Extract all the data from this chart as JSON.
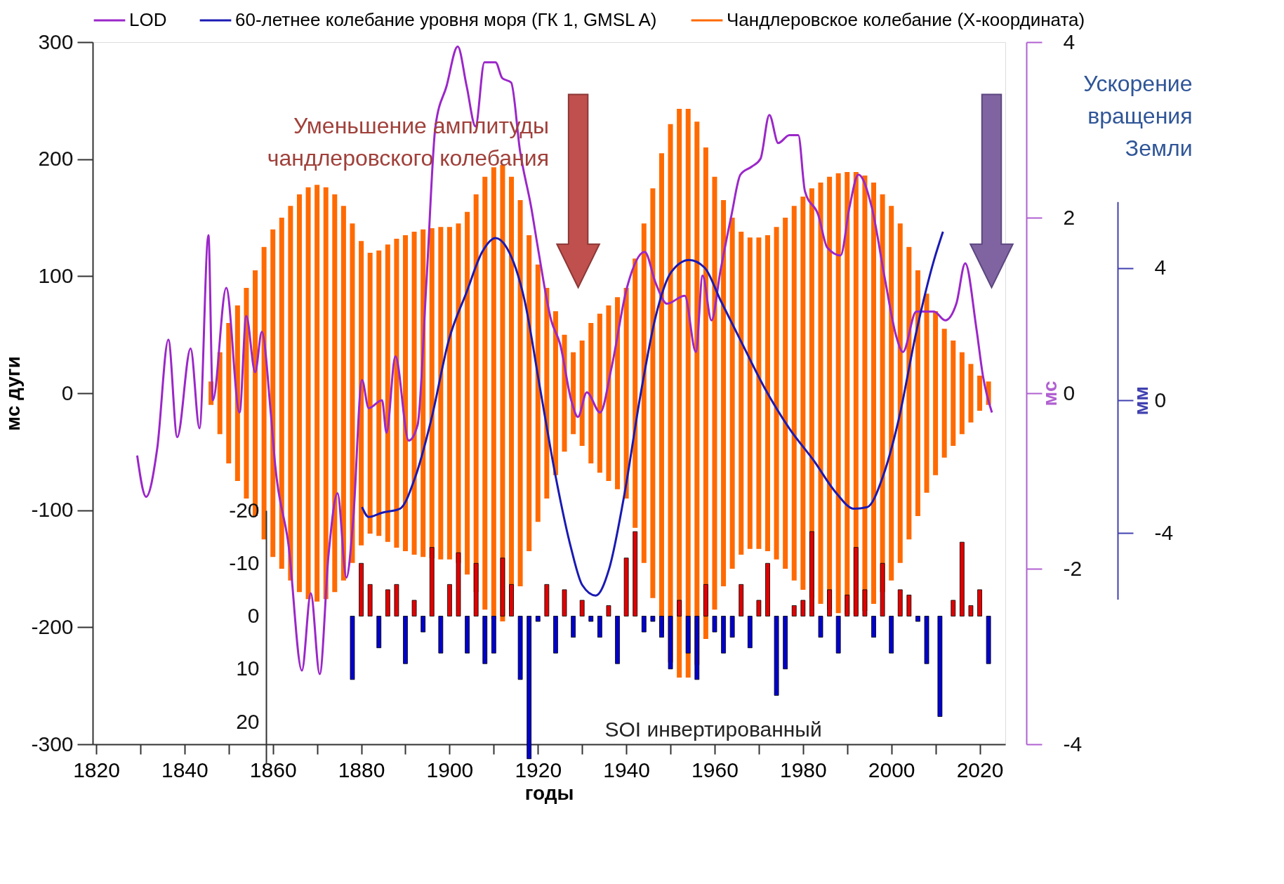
{
  "chart_data": [
    {
      "type": "line",
      "xlabel": "годы",
      "ylabel": "мс дуги",
      "y2label": "мс",
      "y3label": "мм",
      "xlim": [
        1820,
        2025
      ],
      "xticks": [
        1820,
        {
          "value": 1830,
          "label": null
        },
        1840,
        {
          "value": 1850,
          "label": null
        },
        1860,
        {
          "value": 1870,
          "label": null
        },
        1880,
        {
          "value": 1890,
          "label": null
        },
        1900,
        {
          "value": 1910,
          "label": null
        },
        1920,
        {
          "value": 1930,
          "label": null
        },
        1940,
        {
          "value": 1950,
          "label": null
        },
        1960,
        {
          "value": 1970,
          "label": null
        },
        1980,
        {
          "value": 1990,
          "label": null
        },
        2000,
        {
          "value": 2010,
          "label": null
        },
        2020
      ],
      "ylim": [
        -300,
        300
      ],
      "yticks": [
        -300,
        -200,
        -100,
        0,
        100,
        200,
        300
      ],
      "y2lim": [
        -4,
        4
      ],
      "y2ticks": [
        -4,
        -2,
        0,
        2,
        4
      ],
      "y3lim": [
        -6,
        6
      ],
      "y3ticks": [
        -4,
        0,
        4
      ],
      "grid": false,
      "legend": "top",
      "annotations": [
        "Уменьшение амплитуды чандлеровского колебания",
        "Ускорение вращения Земли"
      ],
      "series": [
        {
          "axis": "y2",
          "name": "LOD",
          "color": "#9b27c9",
          "x": [
            1830,
            1832,
            1834.5,
            1837,
            1839,
            1842,
            1844,
            1846,
            1847,
            1850,
            1853,
            1854.5,
            1856.5,
            1858,
            1860,
            1861,
            1864,
            1867,
            1869,
            1871,
            1873,
            1875,
            1877,
            1878.5,
            1880.5,
            1882,
            1885,
            1886,
            1888,
            1891,
            1893,
            1895,
            1897,
            1899.5,
            1902,
            1904,
            1906,
            1908,
            1910.5,
            1912,
            1914,
            1916,
            1918.5,
            1920,
            1923,
            1925,
            1927.5,
            1929,
            1931,
            1934,
            1936.5,
            1940,
            1944,
            1946.5,
            1949,
            1953,
            1955.5,
            1957,
            1959,
            1961,
            1963.5,
            1965.5,
            1968,
            1970,
            1972,
            1974,
            1976.5,
            1978.5,
            1980,
            1983,
            1985,
            1988,
            1990,
            1992,
            1995,
            1998,
            2000.5,
            2002,
            2005,
            2009,
            2011.5,
            2014,
            2016,
            2018.5,
            2020,
            2022
          ],
          "values": [
            -0.71,
            -1.18,
            -0.63,
            0.61,
            -0.5,
            0.51,
            -0.4,
            1.8,
            -0.08,
            1.2,
            -0.22,
            0.88,
            0.24,
            0.7,
            -0.22,
            -0.82,
            -1.73,
            -3.16,
            -2.28,
            -3.2,
            -1.83,
            -1.14,
            -2.1,
            -1.46,
            0.15,
            -0.17,
            -0.08,
            -0.45,
            0.42,
            -0.54,
            -0.36,
            1.29,
            3.04,
            3.5,
            3.95,
            3.5,
            3.04,
            3.77,
            3.77,
            3.59,
            3.54,
            2.76,
            2.12,
            1.66,
            0.83,
            0.56,
            -0.08,
            -0.27,
            0.01,
            -0.22,
            0.28,
            1.2,
            1.61,
            1.25,
            1.02,
            1.11,
            0.47,
            1.34,
            0.83,
            1.39,
            2.03,
            2.49,
            2.58,
            2.67,
            3.17,
            2.85,
            2.94,
            2.94,
            2.3,
            2.03,
            1.66,
            1.57,
            2.12,
            2.49,
            2.12,
            1.29,
            0.65,
            0.47,
            0.93,
            0.93,
            0.83,
            1.02,
            1.48,
            0.74,
            0.19,
            -0.22
          ]
        },
        {
          "axis": "y3",
          "name": "60-летнее колебание уровня моря (ГК 1, GMSL A)",
          "color": "#1a1ab4",
          "x": [
            1880.5,
            1882,
            1885,
            1889,
            1892.5,
            1896,
            1900,
            1904,
            1907.5,
            1910.5,
            1913,
            1917,
            1920.5,
            1924,
            1927.5,
            1930,
            1933,
            1936,
            1939.5,
            1943,
            1946.5,
            1950,
            1954,
            1957.5,
            1961,
            1965.5,
            1971,
            1976.5,
            1982,
            1987,
            1991,
            1994,
            1997.5,
            2001,
            2005,
            2009,
            2011
          ],
          "values": [
            -3.22,
            -3.52,
            -3.39,
            -3.27,
            -2.3,
            -0.61,
            1.82,
            3.27,
            4.48,
            4.9,
            4.61,
            3.03,
            0.36,
            -2.3,
            -4.48,
            -5.58,
            -5.89,
            -5.09,
            -2.79,
            0.12,
            2.55,
            3.88,
            4.24,
            4.0,
            3.03,
            1.82,
            0.36,
            -0.85,
            -1.82,
            -2.79,
            -3.27,
            -3.22,
            -2.3,
            -0.61,
            2.06,
            4.24,
            5.09
          ]
        },
        {
          "type": "bar",
          "axis": "y",
          "name": "Чандлеровское колебание (Х-координата)",
          "color": "#ff6a00",
          "x": [
            1846,
            1848,
            1850,
            1852,
            1854,
            1856,
            1858,
            1860,
            1862,
            1864,
            1866,
            1868,
            1870,
            1872,
            1874,
            1876,
            1878,
            1880,
            1882,
            1884,
            1886,
            1888,
            1890,
            1892,
            1894,
            1896,
            1898,
            1900,
            1902,
            1904,
            1906,
            1908,
            1910,
            1912,
            1914,
            1916,
            1918,
            1920,
            1922,
            1924,
            1926,
            1928,
            1930,
            1932,
            1934,
            1936,
            1938,
            1940,
            1942,
            1944,
            1946,
            1948,
            1950,
            1952,
            1954,
            1956,
            1958,
            1960,
            1962,
            1964,
            1966,
            1968,
            1970,
            1972,
            1974,
            1976,
            1978,
            1980,
            1982,
            1984,
            1986,
            1988,
            1990,
            1992,
            1994,
            1996,
            1998,
            2000,
            2002,
            2004,
            2006,
            2008,
            2010,
            2012,
            2014,
            2016,
            2018,
            2020,
            2022
          ],
          "base": [
            -10,
            -35,
            -60,
            -75,
            -90,
            -105,
            -125,
            -140,
            -150,
            -160,
            -170,
            -176,
            -178,
            -176,
            -170,
            -160,
            -145,
            -130,
            -120,
            -122,
            -127,
            -132,
            -135,
            -138,
            -140,
            -141,
            -142,
            -142,
            -145,
            -155,
            -170,
            -185,
            -193,
            -195,
            -185,
            -165,
            -135,
            -110,
            -90,
            -70,
            -50,
            -35,
            -45,
            -60,
            -68,
            -75,
            -82,
            -90,
            -115,
            -145,
            -175,
            -205,
            -230,
            -243,
            -243,
            -232,
            -210,
            -185,
            -165,
            -150,
            -138,
            -133,
            -133,
            -135,
            -142,
            -150,
            -160,
            -168,
            -175,
            -180,
            -185,
            -188,
            -189,
            -189,
            -186,
            -180,
            -170,
            -160,
            -145,
            -125,
            -105,
            -85,
            -70,
            -55,
            -45,
            -35,
            -25,
            -15,
            -10
          ],
          "values": [
            20,
            70,
            120,
            150,
            180,
            210,
            250,
            280,
            300,
            320,
            340,
            352,
            356,
            352,
            340,
            320,
            290,
            260,
            240,
            244,
            254,
            264,
            270,
            276,
            280,
            282,
            284,
            284,
            290,
            310,
            340,
            370,
            386,
            390,
            370,
            330,
            270,
            220,
            180,
            140,
            100,
            70,
            90,
            120,
            136,
            150,
            164,
            180,
            230,
            290,
            350,
            410,
            460,
            486,
            486,
            464,
            420,
            370,
            330,
            300,
            276,
            266,
            266,
            270,
            284,
            300,
            320,
            336,
            350,
            360,
            370,
            376,
            378,
            378,
            372,
            360,
            340,
            320,
            290,
            250,
            210,
            170,
            140,
            110,
            90,
            70,
            50,
            30,
            20
          ]
        }
      ]
    },
    {
      "type": "bar",
      "xlim": [
        1820,
        2025
      ],
      "ylim": [
        28,
        -20
      ],
      "yticks": [
        -20,
        -10,
        0,
        10,
        20
      ],
      "tick_labels": "y",
      "annotations": [
        "SOI инвертированный"
      ],
      "x": [
        1878,
        1880,
        1882,
        1884,
        1886,
        1888,
        1890,
        1892,
        1894,
        1896,
        1898,
        1900,
        1902,
        1904,
        1906,
        1908,
        1910,
        1912,
        1914,
        1916,
        1918,
        1920,
        1922,
        1924,
        1926,
        1928,
        1930,
        1932,
        1934,
        1936,
        1938,
        1940,
        1942,
        1944,
        1946,
        1948,
        1950,
        1952,
        1954,
        1956,
        1958,
        1960,
        1962,
        1964,
        1966,
        1968,
        1970,
        1972,
        1974,
        1976,
        1978,
        1980,
        1982,
        1984,
        1986,
        1988,
        1990,
        1992,
        1994,
        1996,
        1998,
        2000,
        2002,
        2004,
        2006,
        2008,
        2011,
        2014,
        2016,
        2018,
        2020,
        2022
      ],
      "values": [
        12,
        -10,
        -6,
        6,
        -5,
        -6,
        9,
        -3,
        3,
        -13,
        7,
        -6,
        -12,
        7,
        -10,
        9,
        7,
        -11,
        -6,
        12,
        27,
        1,
        -6,
        7,
        -5,
        4,
        -3,
        1,
        4,
        -2,
        9,
        -11,
        -16,
        3,
        1,
        4,
        10,
        -3,
        7,
        12,
        -6,
        3,
        7,
        4,
        -6,
        6,
        -3,
        -10,
        15,
        10,
        -2,
        -3,
        -16,
        4,
        -5,
        7,
        -4,
        -13,
        -5,
        4,
        -10,
        7,
        -5,
        -4,
        1,
        9,
        19,
        -3,
        -14,
        -2,
        -5,
        9
      ],
      "colors": [
        "#0000cc",
        "#e00000",
        "#e00000",
        "#0000cc",
        "#e00000",
        "#e00000",
        "#0000cc",
        "#e00000",
        "#0000cc",
        "#e00000",
        "#0000cc",
        "#e00000",
        "#e00000",
        "#0000cc",
        "#e00000",
        "#0000cc",
        "#0000cc",
        "#e00000",
        "#e00000",
        "#0000cc",
        "#0000cc",
        "#0000cc",
        "#e00000",
        "#0000cc",
        "#e00000",
        "#0000cc",
        "#e00000",
        "#0000cc",
        "#0000cc",
        "#e00000",
        "#0000cc",
        "#e00000",
        "#e00000",
        "#0000cc",
        "#0000cc",
        "#0000cc",
        "#0000cc",
        "#e00000",
        "#0000cc",
        "#0000cc",
        "#e00000",
        "#0000cc",
        "#0000cc",
        "#0000cc",
        "#e00000",
        "#0000cc",
        "#e00000",
        "#e00000",
        "#0000cc",
        "#0000cc",
        "#e00000",
        "#e00000",
        "#e00000",
        "#0000cc",
        "#e00000",
        "#0000cc",
        "#e00000",
        "#e00000",
        "#e00000",
        "#0000cc",
        "#e00000",
        "#0000cc",
        "#e00000",
        "#e00000",
        "#0000cc",
        "#0000cc",
        "#0000cc",
        "#e00000",
        "#e00000",
        "#e00000",
        "#e00000",
        "#0000cc"
      ]
    }
  ]
}
